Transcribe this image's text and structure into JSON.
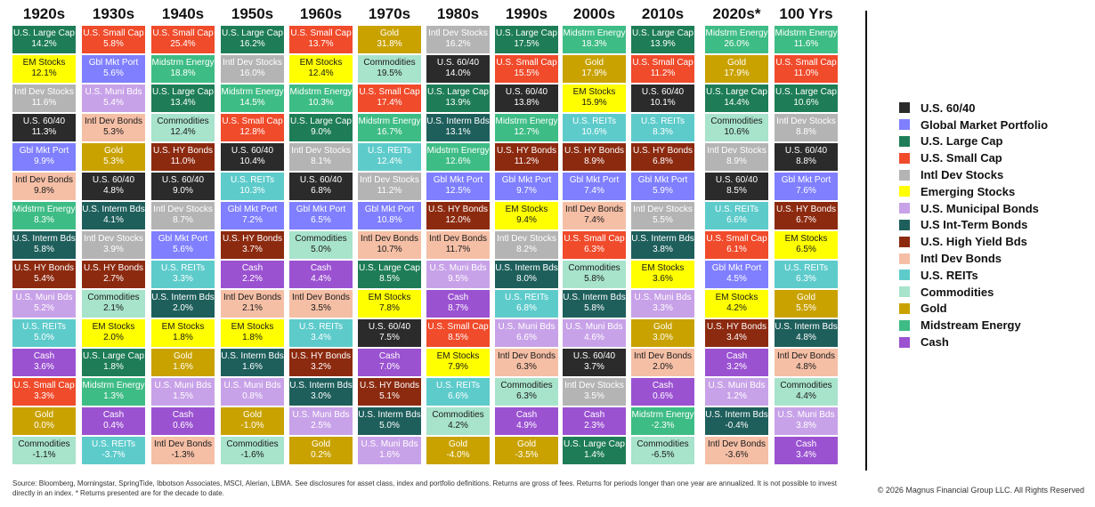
{
  "chart_data": {
    "type": "table",
    "columns": [
      "1920s",
      "1930s",
      "1940s",
      "1950s",
      "1960s",
      "1970s",
      "1980s",
      "1990s",
      "2000s",
      "2010s",
      "2020s*",
      "100 Yrs"
    ],
    "colors": {
      "U.S. 60/40": "#2b2b2b",
      "Global Market Portfolio": "#7f7fff",
      "U.S. Large Cap": "#1e7d57",
      "U.S. Small Cap": "#f04b2b",
      "Intl Dev Stocks": "#b4b4b4",
      "Emerging Stocks": "#ffff00",
      "U.S. Municipal Bonds": "#c8a2e8",
      "U.S Int-Term Bonds": "#1e5f5c",
      "U.S. High Yield Bds": "#8c2a10",
      "Intl Dev Bonds": "#f5bfa6",
      "U.S. REITs": "#5ecbcb",
      "Commodities": "#a8e3cc",
      "Gold": "#c9a200",
      "Midstream Energy": "#3ebc85",
      "Cash": "#9b52d1"
    },
    "columns_data": [
      [
        [
          "U.S. Large Cap",
          "14.2%",
          "U.S. Large Cap"
        ],
        [
          "EM Stocks",
          "12.1%",
          "Emerging Stocks"
        ],
        [
          "Intl Dev Stocks",
          "11.6%",
          "Intl Dev Stocks"
        ],
        [
          "U.S. 60/40",
          "11.3%",
          "U.S. 60/40"
        ],
        [
          "Gbl Mkt Port",
          "9.9%",
          "Global Market Portfolio"
        ],
        [
          "Intl Dev Bonds",
          "9.8%",
          "Intl Dev Bonds"
        ],
        [
          "Midstrm Energy",
          "8.3%",
          "Midstream Energy"
        ],
        [
          "U.S. Interm Bds",
          "5.8%",
          "U.S Int-Term Bonds"
        ],
        [
          "U.S. HY Bonds",
          "5.4%",
          "U.S. High Yield Bds"
        ],
        [
          "U.S. Muni Bds",
          "5.2%",
          "U.S. Municipal Bonds"
        ],
        [
          "U.S. REITs",
          "5.0%",
          "U.S. REITs"
        ],
        [
          "Cash",
          "3.6%",
          "Cash"
        ],
        [
          "U.S. Small Cap",
          "3.3%",
          "U.S. Small Cap"
        ],
        [
          "Gold",
          "0.0%",
          "Gold"
        ],
        [
          "Commodities",
          "-1.1%",
          "Commodities"
        ]
      ],
      [
        [
          "U.S. Small Cap",
          "5.8%",
          "U.S. Small Cap"
        ],
        [
          "Gbl Mkt Port",
          "5.6%",
          "Global Market Portfolio"
        ],
        [
          "U.S. Muni Bds",
          "5.4%",
          "U.S. Municipal Bonds"
        ],
        [
          "Intl Dev Bonds",
          "5.3%",
          "Intl Dev Bonds"
        ],
        [
          "Gold",
          "5.3%",
          "Gold"
        ],
        [
          "U.S. 60/40",
          "4.8%",
          "U.S. 60/40"
        ],
        [
          "U.S. Interm Bds",
          "4.1%",
          "U.S Int-Term Bonds"
        ],
        [
          "Intl Dev Stocks",
          "3.9%",
          "Intl Dev Stocks"
        ],
        [
          "U.S. HY Bonds",
          "2.7%",
          "U.S. High Yield Bds"
        ],
        [
          "Commodities",
          "2.1%",
          "Commodities"
        ],
        [
          "EM Stocks",
          "2.0%",
          "Emerging Stocks"
        ],
        [
          "U.S. Large Cap",
          "1.8%",
          "U.S. Large Cap"
        ],
        [
          "Midstrm Energy",
          "1.3%",
          "Midstream Energy"
        ],
        [
          "Cash",
          "0.4%",
          "Cash"
        ],
        [
          "U.S. REITs",
          "-3.7%",
          "U.S. REITs"
        ]
      ],
      [
        [
          "U.S. Small Cap",
          "25.4%",
          "U.S. Small Cap"
        ],
        [
          "Midstrm Energy",
          "18.8%",
          "Midstream Energy"
        ],
        [
          "U.S. Large Cap",
          "13.4%",
          "U.S. Large Cap"
        ],
        [
          "Commodities",
          "12.4%",
          "Commodities"
        ],
        [
          "U.S. HY Bonds",
          "11.0%",
          "U.S. High Yield Bds"
        ],
        [
          "U.S. 60/40",
          "9.0%",
          "U.S. 60/40"
        ],
        [
          "Intl Dev Stocks",
          "8.7%",
          "Intl Dev Stocks"
        ],
        [
          "Gbl Mkt Port",
          "5.6%",
          "Global Market Portfolio"
        ],
        [
          "U.S. REITs",
          "3.3%",
          "U.S. REITs"
        ],
        [
          "U.S. Interm Bds",
          "2.0%",
          "U.S Int-Term Bonds"
        ],
        [
          "EM Stocks",
          "1.8%",
          "Emerging Stocks"
        ],
        [
          "Gold",
          "1.6%",
          "Gold"
        ],
        [
          "U.S. Muni Bds",
          "1.5%",
          "U.S. Municipal Bonds"
        ],
        [
          "Cash",
          "0.6%",
          "Cash"
        ],
        [
          "Intl Dev Bonds",
          "-1.3%",
          "Intl Dev Bonds"
        ]
      ],
      [
        [
          "U.S. Large Cap",
          "16.2%",
          "U.S. Large Cap"
        ],
        [
          "Intl Dev Stocks",
          "16.0%",
          "Intl Dev Stocks"
        ],
        [
          "Midstrm Energy",
          "14.5%",
          "Midstream Energy"
        ],
        [
          "U.S. Small Cap",
          "12.8%",
          "U.S. Small Cap"
        ],
        [
          "U.S. 60/40",
          "10.4%",
          "U.S. 60/40"
        ],
        [
          "U.S. REITs",
          "10.3%",
          "U.S. REITs"
        ],
        [
          "Gbl Mkt Port",
          "7.2%",
          "Global Market Portfolio"
        ],
        [
          "U.S. HY Bonds",
          "3.7%",
          "U.S. High Yield Bds"
        ],
        [
          "Cash",
          "2.2%",
          "Cash"
        ],
        [
          "Intl Dev Bonds",
          "2.1%",
          "Intl Dev Bonds"
        ],
        [
          "EM Stocks",
          "1.8%",
          "Emerging Stocks"
        ],
        [
          "U.S. Interm Bds",
          "1.6%",
          "U.S Int-Term Bonds"
        ],
        [
          "U.S. Muni Bds",
          "0.8%",
          "U.S. Municipal Bonds"
        ],
        [
          "Gold",
          "-1.0%",
          "Gold"
        ],
        [
          "Commodities",
          "-1.6%",
          "Commodities"
        ]
      ],
      [
        [
          "U.S. Small Cap",
          "13.7%",
          "U.S. Small Cap"
        ],
        [
          "EM Stocks",
          "12.4%",
          "Emerging Stocks"
        ],
        [
          "Midstrm Energy",
          "10.3%",
          "Midstream Energy"
        ],
        [
          "U.S. Large Cap",
          "9.0%",
          "U.S. Large Cap"
        ],
        [
          "Intl Dev Stocks",
          "8.1%",
          "Intl Dev Stocks"
        ],
        [
          "U.S. 60/40",
          "6.8%",
          "U.S. 60/40"
        ],
        [
          "Gbl Mkt Port",
          "6.5%",
          "Global Market Portfolio"
        ],
        [
          "Commodities",
          "5.0%",
          "Commodities"
        ],
        [
          "Cash",
          "4.4%",
          "Cash"
        ],
        [
          "Intl Dev Bonds",
          "3.5%",
          "Intl Dev Bonds"
        ],
        [
          "U.S. REITs",
          "3.4%",
          "U.S. REITs"
        ],
        [
          "U.S. HY Bonds",
          "3.2%",
          "U.S. High Yield Bds"
        ],
        [
          "U.S. Interm Bds",
          "3.0%",
          "U.S Int-Term Bonds"
        ],
        [
          "U.S. Muni Bds",
          "2.5%",
          "U.S. Municipal Bonds"
        ],
        [
          "Gold",
          "0.2%",
          "Gold"
        ]
      ],
      [
        [
          "Gold",
          "31.8%",
          "Gold"
        ],
        [
          "Commodities",
          "19.5%",
          "Commodities"
        ],
        [
          "U.S. Small Cap",
          "17.4%",
          "U.S. Small Cap"
        ],
        [
          "Midstrm Energy",
          "16.7%",
          "Midstream Energy"
        ],
        [
          "U.S. REITs",
          "12.4%",
          "U.S. REITs"
        ],
        [
          "Intl Dev Stocks",
          "11.2%",
          "Intl Dev Stocks"
        ],
        [
          "Gbl Mkt Port",
          "10.8%",
          "Global Market Portfolio"
        ],
        [
          "Intl Dev Bonds",
          "10.7%",
          "Intl Dev Bonds"
        ],
        [
          "U.S. Large Cap",
          "8.5%",
          "U.S. Large Cap"
        ],
        [
          "EM Stocks",
          "7.8%",
          "Emerging Stocks"
        ],
        [
          "U.S. 60/40",
          "7.5%",
          "U.S. 60/40"
        ],
        [
          "Cash",
          "7.0%",
          "Cash"
        ],
        [
          "U.S. HY Bonds",
          "5.1%",
          "U.S. High Yield Bds"
        ],
        [
          "U.S. Interm Bds",
          "5.0%",
          "U.S Int-Term Bonds"
        ],
        [
          "U.S. Muni Bds",
          "1.6%",
          "U.S. Municipal Bonds"
        ]
      ],
      [
        [
          "Intl Dev Stocks",
          "16.2%",
          "Intl Dev Stocks"
        ],
        [
          "U.S. 60/40",
          "14.0%",
          "U.S. 60/40"
        ],
        [
          "U.S. Large Cap",
          "13.9%",
          "U.S. Large Cap"
        ],
        [
          "U.S. Interm Bds",
          "13.1%",
          "U.S Int-Term Bonds"
        ],
        [
          "Midstrm Energy",
          "12.6%",
          "Midstream Energy"
        ],
        [
          "Gbl Mkt Port",
          "12.5%",
          "Global Market Portfolio"
        ],
        [
          "U.S. HY Bonds",
          "12.0%",
          "U.S. High Yield Bds"
        ],
        [
          "Intl Dev Bonds",
          "11.7%",
          "Intl Dev Bonds"
        ],
        [
          "U.S. Muni Bds",
          "9.5%",
          "U.S. Municipal Bonds"
        ],
        [
          "Cash",
          "8.7%",
          "Cash"
        ],
        [
          "U.S. Small Cap",
          "8.5%",
          "U.S. Small Cap"
        ],
        [
          "EM Stocks",
          "7.9%",
          "Emerging Stocks"
        ],
        [
          "U.S. REITs",
          "6.6%",
          "U.S. REITs"
        ],
        [
          "Commodities",
          "4.2%",
          "Commodities"
        ],
        [
          "Gold",
          "-4.0%",
          "Gold"
        ]
      ],
      [
        [
          "U.S. Large Cap",
          "17.5%",
          "U.S. Large Cap"
        ],
        [
          "U.S. Small Cap",
          "15.5%",
          "U.S. Small Cap"
        ],
        [
          "U.S. 60/40",
          "13.8%",
          "U.S. 60/40"
        ],
        [
          "Midstrm Energy",
          "12.7%",
          "Midstream Energy"
        ],
        [
          "U.S. HY Bonds",
          "11.2%",
          "U.S. High Yield Bds"
        ],
        [
          "Gbl Mkt Port",
          "9.7%",
          "Global Market Portfolio"
        ],
        [
          "EM Stocks",
          "9.4%",
          "Emerging Stocks"
        ],
        [
          "Intl Dev Stocks",
          "8.2%",
          "Intl Dev Stocks"
        ],
        [
          "U.S. Interm Bds",
          "8.0%",
          "U.S Int-Term Bonds"
        ],
        [
          "U.S. REITs",
          "6.8%",
          "U.S. REITs"
        ],
        [
          "U.S. Muni Bds",
          "6.6%",
          "U.S. Municipal Bonds"
        ],
        [
          "Intl Dev Bonds",
          "6.3%",
          "Intl Dev Bonds"
        ],
        [
          "Commodities",
          "6.3%",
          "Commodities"
        ],
        [
          "Cash",
          "4.9%",
          "Cash"
        ],
        [
          "Gold",
          "-3.5%",
          "Gold"
        ]
      ],
      [
        [
          "Midstrm Energy",
          "18.3%",
          "Midstream Energy"
        ],
        [
          "Gold",
          "17.9%",
          "Gold"
        ],
        [
          "EM Stocks",
          "15.9%",
          "Emerging Stocks"
        ],
        [
          "U.S. REITs",
          "10.6%",
          "U.S. REITs"
        ],
        [
          "U.S. HY Bonds",
          "8.9%",
          "U.S. High Yield Bds"
        ],
        [
          "Gbl Mkt Port",
          "7.4%",
          "Global Market Portfolio"
        ],
        [
          "Intl Dev Bonds",
          "7.4%",
          "Intl Dev Bonds"
        ],
        [
          "U.S. Small Cap",
          "6.3%",
          "U.S. Small Cap"
        ],
        [
          "Commodities",
          "5.8%",
          "Commodities"
        ],
        [
          "U.S. Interm Bds",
          "5.8%",
          "U.S Int-Term Bonds"
        ],
        [
          "U.S. Muni Bds",
          "4.6%",
          "U.S. Municipal Bonds"
        ],
        [
          "U.S. 60/40",
          "3.7%",
          "U.S. 60/40"
        ],
        [
          "Intl Dev Stocks",
          "3.5%",
          "Intl Dev Stocks"
        ],
        [
          "Cash",
          "2.3%",
          "Cash"
        ],
        [
          "U.S. Large Cap",
          "1.4%",
          "U.S. Large Cap"
        ]
      ],
      [
        [
          "U.S. Large Cap",
          "13.9%",
          "U.S. Large Cap"
        ],
        [
          "U.S. Small Cap",
          "11.2%",
          "U.S. Small Cap"
        ],
        [
          "U.S. 60/40",
          "10.1%",
          "U.S. 60/40"
        ],
        [
          "U.S. REITs",
          "8.3%",
          "U.S. REITs"
        ],
        [
          "U.S. HY Bonds",
          "6.8%",
          "U.S. High Yield Bds"
        ],
        [
          "Gbl Mkt Port",
          "5.9%",
          "Global Market Portfolio"
        ],
        [
          "Intl Dev Stocks",
          "5.5%",
          "Intl Dev Stocks"
        ],
        [
          "U.S. Interm Bds",
          "3.8%",
          "U.S Int-Term Bonds"
        ],
        [
          "EM Stocks",
          "3.6%",
          "Emerging Stocks"
        ],
        [
          "U.S. Muni Bds",
          "3.3%",
          "U.S. Municipal Bonds"
        ],
        [
          "Gold",
          "3.0%",
          "Gold"
        ],
        [
          "Intl Dev Bonds",
          "2.0%",
          "Intl Dev Bonds"
        ],
        [
          "Cash",
          "0.6%",
          "Cash"
        ],
        [
          "Midstrm Energy",
          "-2.3%",
          "Midstream Energy"
        ],
        [
          "Commodities",
          "-6.5%",
          "Commodities"
        ]
      ],
      [
        [
          "Midstrm Energy",
          "26.0%",
          "Midstream Energy"
        ],
        [
          "Gold",
          "17.9%",
          "Gold"
        ],
        [
          "U.S. Large Cap",
          "14.4%",
          "U.S. Large Cap"
        ],
        [
          "Commodities",
          "10.6%",
          "Commodities"
        ],
        [
          "Intl Dev Stocks",
          "8.9%",
          "Intl Dev Stocks"
        ],
        [
          "U.S. 60/40",
          "8.5%",
          "U.S. 60/40"
        ],
        [
          "U.S. REITs",
          "6.6%",
          "U.S. REITs"
        ],
        [
          "U.S. Small Cap",
          "6.1%",
          "U.S. Small Cap"
        ],
        [
          "Gbl Mkt Port",
          "4.5%",
          "Global Market Portfolio"
        ],
        [
          "EM Stocks",
          "4.2%",
          "Emerging Stocks"
        ],
        [
          "U.S. HY Bonds",
          "3.4%",
          "U.S. High Yield Bds"
        ],
        [
          "Cash",
          "3.2%",
          "Cash"
        ],
        [
          "U.S. Muni Bds",
          "1.2%",
          "U.S. Municipal Bonds"
        ],
        [
          "U.S. Interm Bds",
          "-0.4%",
          "U.S Int-Term Bonds"
        ],
        [
          "Intl Dev Bonds",
          "-3.6%",
          "Intl Dev Bonds"
        ]
      ],
      [
        [
          "Midstrm Energy",
          "11.6%",
          "Midstream Energy"
        ],
        [
          "U.S. Small Cap",
          "11.0%",
          "U.S. Small Cap"
        ],
        [
          "U.S. Large Cap",
          "10.6%",
          "U.S. Large Cap"
        ],
        [
          "Intl Dev Stocks",
          "8.8%",
          "Intl Dev Stocks"
        ],
        [
          "U.S. 60/40",
          "8.8%",
          "U.S. 60/40"
        ],
        [
          "Gbl Mkt Port",
          "7.6%",
          "Global Market Portfolio"
        ],
        [
          "U.S. HY Bonds",
          "6.7%",
          "U.S. High Yield Bds"
        ],
        [
          "EM Stocks",
          "6.5%",
          "Emerging Stocks"
        ],
        [
          "U.S. REITs",
          "6.3%",
          "U.S. REITs"
        ],
        [
          "Gold",
          "5.5%",
          "Gold"
        ],
        [
          "U.S. Interm Bds",
          "4.8%",
          "U.S Int-Term Bonds"
        ],
        [
          "Intl Dev Bonds",
          "4.8%",
          "Intl Dev Bonds"
        ],
        [
          "Commodities",
          "4.4%",
          "Commodities"
        ],
        [
          "U.S. Muni Bds",
          "3.8%",
          "U.S. Municipal Bonds"
        ],
        [
          "Cash",
          "3.4%",
          "Cash"
        ]
      ]
    ]
  },
  "legend": [
    "U.S. 60/40",
    "Global Market Portfolio",
    "U.S. Large Cap",
    "U.S. Small Cap",
    "Intl Dev Stocks",
    "Emerging Stocks",
    "U.S. Municipal Bonds",
    "U.S Int-Term Bonds",
    "U.S. High Yield Bds",
    "Intl Dev Bonds",
    "U.S. REITs",
    "Commodities",
    "Gold",
    "Midstream Energy",
    "Cash"
  ],
  "text_colors": {
    "dark_text": "#1a1a1a",
    "light_text": "#ffffff"
  },
  "footnote": "Source: Bloomberg, Morningstar, SpringTide, Ibbotson Associates, MSCI, Alerian, LBMA. See disclosures for asset class, index and portfolio definitions. Returns are gross of fees. Returns for periods longer than one year are annualized. It is not possible to invest directly in an index. * Returns presented are for the decade to date.",
  "copyright": "© 2026 Magnus Financial Group LLC. All Rights Reserved"
}
